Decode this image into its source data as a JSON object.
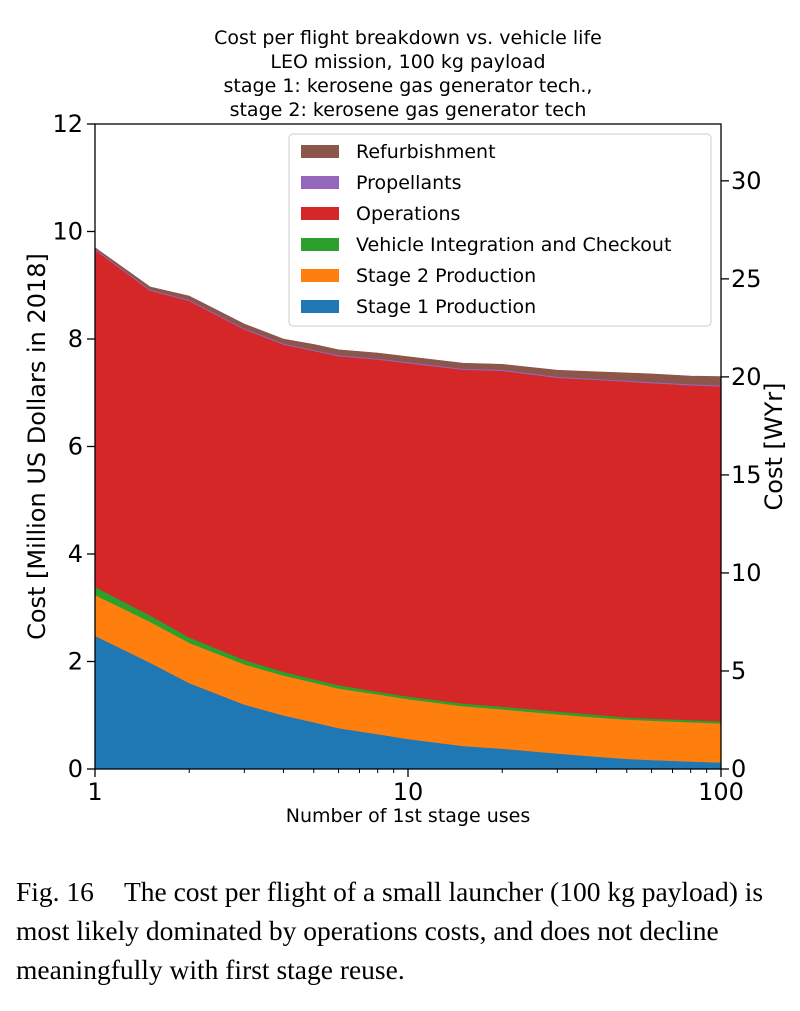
{
  "chart_data": {
    "type": "area",
    "stacked": true,
    "title_lines": [
      "Cost per flight breakdown vs. vehicle life",
      "LEO mission, 100 kg payload",
      "stage 1: kerosene gas generator tech.,",
      "stage 2: kerosene gas generator tech"
    ],
    "xlabel": "Number of 1st stage uses",
    "ylabel": "Cost [Million US Dollars in 2018]",
    "y2label": "Cost [WYr]",
    "xscale": "log",
    "xlim": [
      1,
      100
    ],
    "ylim": [
      0,
      12
    ],
    "y2lim": [
      0,
      32.9
    ],
    "xticks": [
      1,
      10,
      100
    ],
    "xtick_labels": [
      "1",
      "10",
      "100"
    ],
    "yticks": [
      0,
      2,
      4,
      6,
      8,
      10,
      12
    ],
    "ytick_labels": [
      "0",
      "2",
      "4",
      "6",
      "8",
      "10",
      "12"
    ],
    "y2ticks": [
      0,
      5,
      10,
      15,
      20,
      25,
      30
    ],
    "y2tick_labels": [
      "0",
      "5",
      "10",
      "15",
      "20",
      "25",
      "30"
    ],
    "legend_position": "top-right",
    "x": [
      1,
      1.5,
      2,
      3,
      4,
      5,
      6,
      8,
      10,
      15,
      20,
      30,
      40,
      50,
      60,
      80,
      100
    ],
    "series": [
      {
        "name": "Stage 1 Production",
        "color": "#1f77b4",
        "values": [
          2.48,
          1.98,
          1.6,
          1.2,
          1.0,
          0.87,
          0.76,
          0.65,
          0.56,
          0.43,
          0.38,
          0.29,
          0.23,
          0.19,
          0.17,
          0.14,
          0.12
        ]
      },
      {
        "name": "Stage 2 Production",
        "color": "#ff7f0e",
        "values": [
          0.76,
          0.76,
          0.75,
          0.75,
          0.74,
          0.74,
          0.74,
          0.74,
          0.74,
          0.74,
          0.73,
          0.73,
          0.73,
          0.73,
          0.73,
          0.73,
          0.73
        ]
      },
      {
        "name": "Vehicle Integration and Checkout",
        "color": "#2ca02c",
        "values": [
          0.15,
          0.12,
          0.1,
          0.08,
          0.07,
          0.06,
          0.06,
          0.05,
          0.05,
          0.05,
          0.05,
          0.05,
          0.05,
          0.04,
          0.04,
          0.04,
          0.04
        ]
      },
      {
        "name": "Operations",
        "color": "#d62728",
        "values": [
          6.27,
          6.04,
          6.26,
          6.15,
          6.09,
          6.11,
          6.12,
          6.18,
          6.2,
          6.21,
          6.25,
          6.21,
          6.23,
          6.25,
          6.24,
          6.23,
          6.23
        ]
      },
      {
        "name": "Propellants",
        "color": "#9467bd",
        "values": [
          0.02,
          0.02,
          0.02,
          0.02,
          0.02,
          0.02,
          0.02,
          0.02,
          0.02,
          0.02,
          0.02,
          0.02,
          0.02,
          0.02,
          0.02,
          0.02,
          0.02
        ]
      },
      {
        "name": "Refurbishment",
        "color": "#8c564b",
        "values": [
          0.02,
          0.05,
          0.07,
          0.08,
          0.08,
          0.1,
          0.1,
          0.1,
          0.1,
          0.1,
          0.1,
          0.12,
          0.13,
          0.14,
          0.15,
          0.15,
          0.16
        ]
      }
    ]
  },
  "caption": {
    "label": "Fig. 16",
    "text": "The cost per flight of a small launcher (100 kg payload) is most likely dominated by operations costs, and does not decline meaningfully with first stage reuse."
  }
}
